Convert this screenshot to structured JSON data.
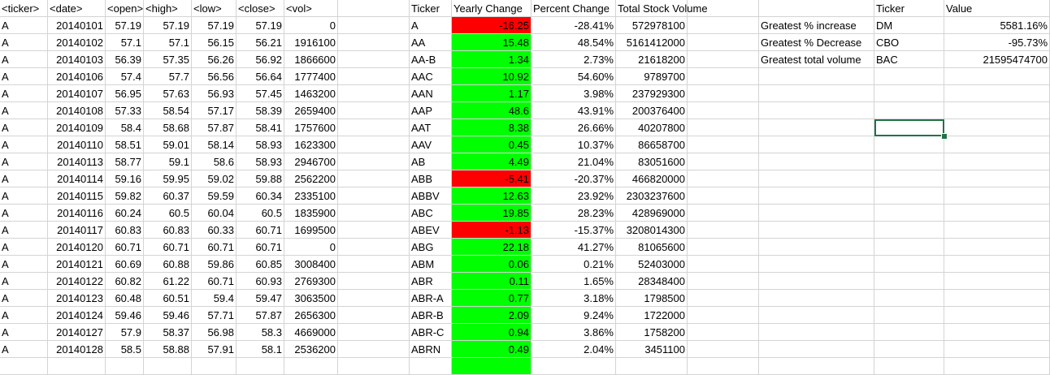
{
  "colors": {
    "negative_fill": "#ff0000",
    "positive_fill": "#00ff00",
    "selection": "#217346",
    "gridline": "#d4d4d4"
  },
  "raw_headers": [
    "<ticker>",
    "<date>",
    "<open>",
    "<high>",
    "<low>",
    "<close>",
    "<vol>"
  ],
  "raw_rows": [
    [
      "A",
      "20140101",
      "57.19",
      "57.19",
      "57.19",
      "57.19",
      "0"
    ],
    [
      "A",
      "20140102",
      "57.1",
      "57.1",
      "56.15",
      "56.21",
      "1916100"
    ],
    [
      "A",
      "20140103",
      "56.39",
      "57.35",
      "56.26",
      "56.92",
      "1866600"
    ],
    [
      "A",
      "20140106",
      "57.4",
      "57.7",
      "56.56",
      "56.64",
      "1777400"
    ],
    [
      "A",
      "20140107",
      "56.95",
      "57.63",
      "56.93",
      "57.45",
      "1463200"
    ],
    [
      "A",
      "20140108",
      "57.33",
      "58.54",
      "57.17",
      "58.39",
      "2659400"
    ],
    [
      "A",
      "20140109",
      "58.4",
      "58.68",
      "57.87",
      "58.41",
      "1757600"
    ],
    [
      "A",
      "20140110",
      "58.51",
      "59.01",
      "58.14",
      "58.93",
      "1623300"
    ],
    [
      "A",
      "20140113",
      "58.77",
      "59.1",
      "58.6",
      "58.93",
      "2946700"
    ],
    [
      "A",
      "20140114",
      "59.16",
      "59.95",
      "59.02",
      "59.88",
      "2562200"
    ],
    [
      "A",
      "20140115",
      "59.82",
      "60.37",
      "59.59",
      "60.34",
      "2335100"
    ],
    [
      "A",
      "20140116",
      "60.24",
      "60.5",
      "60.04",
      "60.5",
      "1835900"
    ],
    [
      "A",
      "20140117",
      "60.83",
      "60.83",
      "60.33",
      "60.71",
      "1699500"
    ],
    [
      "A",
      "20140120",
      "60.71",
      "60.71",
      "60.71",
      "60.71",
      "0"
    ],
    [
      "A",
      "20140121",
      "60.69",
      "60.88",
      "59.86",
      "60.85",
      "3008400"
    ],
    [
      "A",
      "20140122",
      "60.82",
      "61.22",
      "60.71",
      "60.93",
      "2769300"
    ],
    [
      "A",
      "20140123",
      "60.48",
      "60.51",
      "59.4",
      "59.47",
      "3063500"
    ],
    [
      "A",
      "20140124",
      "59.46",
      "59.46",
      "57.71",
      "57.87",
      "2656300"
    ],
    [
      "A",
      "20140127",
      "57.9",
      "58.37",
      "56.98",
      "58.3",
      "4669000"
    ],
    [
      "A",
      "20140128",
      "58.5",
      "58.88",
      "57.91",
      "58.1",
      "2536200"
    ]
  ],
  "summary_headers": [
    "Ticker",
    "Yearly Change",
    "Percent Change",
    "Total Stock Volume"
  ],
  "summary_rows": [
    {
      "ticker": "A",
      "change": "-16.25",
      "pct": "-28.41%",
      "volume": "572978100",
      "status": "negative"
    },
    {
      "ticker": "AA",
      "change": "15.48",
      "pct": "48.54%",
      "volume": "5161412000",
      "status": "positive"
    },
    {
      "ticker": "AA-B",
      "change": "1.34",
      "pct": "2.73%",
      "volume": "21618200",
      "status": "positive"
    },
    {
      "ticker": "AAC",
      "change": "10.92",
      "pct": "54.60%",
      "volume": "9789700",
      "status": "positive"
    },
    {
      "ticker": "AAN",
      "change": "1.17",
      "pct": "3.98%",
      "volume": "237929300",
      "status": "positive"
    },
    {
      "ticker": "AAP",
      "change": "48.6",
      "pct": "43.91%",
      "volume": "200376400",
      "status": "positive"
    },
    {
      "ticker": "AAT",
      "change": "8.38",
      "pct": "26.66%",
      "volume": "40207800",
      "status": "positive"
    },
    {
      "ticker": "AAV",
      "change": "0.45",
      "pct": "10.37%",
      "volume": "86658700",
      "status": "positive"
    },
    {
      "ticker": "AB",
      "change": "4.49",
      "pct": "21.04%",
      "volume": "83051600",
      "status": "positive"
    },
    {
      "ticker": "ABB",
      "change": "-5.41",
      "pct": "-20.37%",
      "volume": "466820000",
      "status": "negative"
    },
    {
      "ticker": "ABBV",
      "change": "12.63",
      "pct": "23.92%",
      "volume": "2303237600",
      "status": "positive"
    },
    {
      "ticker": "ABC",
      "change": "19.85",
      "pct": "28.23%",
      "volume": "428969000",
      "status": "positive"
    },
    {
      "ticker": "ABEV",
      "change": "-1.13",
      "pct": "-15.37%",
      "volume": "3208014300",
      "status": "negative"
    },
    {
      "ticker": "ABG",
      "change": "22.18",
      "pct": "41.27%",
      "volume": "81065600",
      "status": "positive"
    },
    {
      "ticker": "ABM",
      "change": "0.06",
      "pct": "0.21%",
      "volume": "52403000",
      "status": "positive"
    },
    {
      "ticker": "ABR",
      "change": "0.11",
      "pct": "1.65%",
      "volume": "28348400",
      "status": "positive"
    },
    {
      "ticker": "ABR-A",
      "change": "0.77",
      "pct": "3.18%",
      "volume": "1798500",
      "status": "positive"
    },
    {
      "ticker": "ABR-B",
      "change": "2.09",
      "pct": "9.24%",
      "volume": "1722000",
      "status": "positive"
    },
    {
      "ticker": "ABR-C",
      "change": "0.94",
      "pct": "3.86%",
      "volume": "1758200",
      "status": "positive"
    },
    {
      "ticker": "ABRN",
      "change": "0.49",
      "pct": "2.04%",
      "volume": "3451100",
      "status": "positive"
    }
  ],
  "greatest_headers": [
    "",
    "Ticker",
    "Value"
  ],
  "greatest_rows": [
    {
      "label": "Greatest % increase",
      "ticker": "DM",
      "value": "5581.16%"
    },
    {
      "label": "Greatest % Decrease",
      "ticker": "CBO",
      "value": "-95.73%"
    },
    {
      "label": "Greatest total volume",
      "ticker": "BAC",
      "value": "21595474700"
    }
  ]
}
